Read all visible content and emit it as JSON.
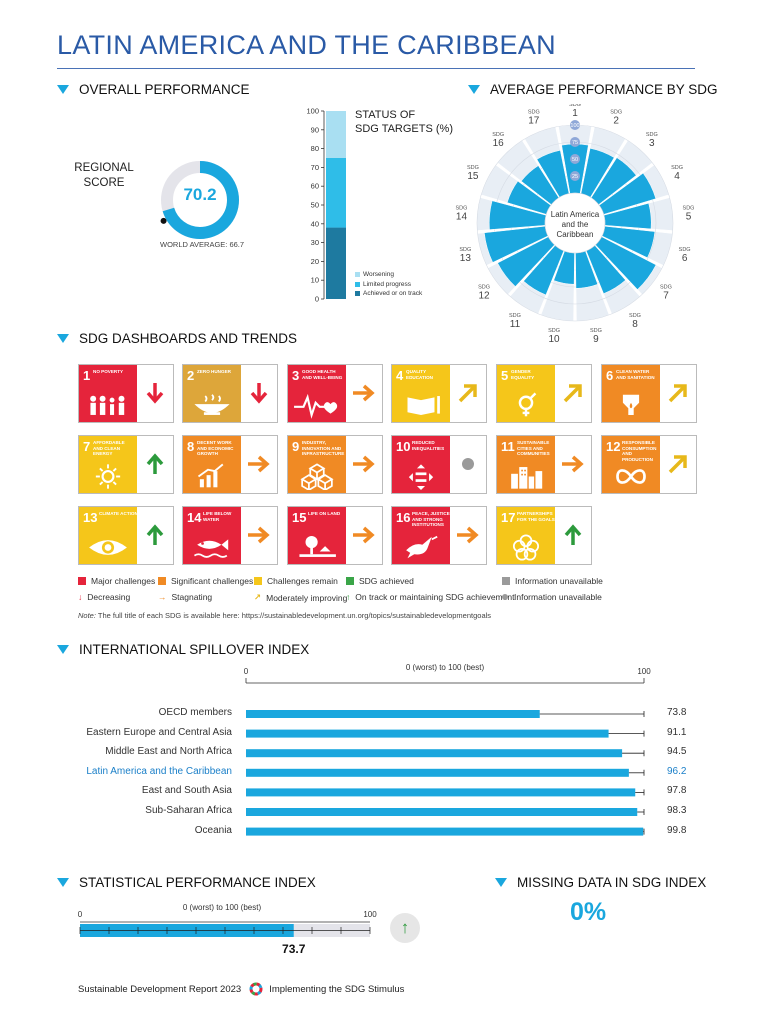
{
  "title": "LATIN AMERICA AND THE CARIBBEAN",
  "sections": {
    "overall": "OVERALL PERFORMANCE",
    "avg_sdg": "AVERAGE PERFORMANCE BY SDG",
    "dashboards": "SDG DASHBOARDS AND TRENDS",
    "spillover": "INTERNATIONAL SPILLOVER INDEX",
    "spi": "STATISTICAL PERFORMANCE INDEX",
    "missing": "MISSING DATA IN SDG INDEX"
  },
  "regional_score": {
    "label_line1": "REGIONAL",
    "label_line2": "SCORE",
    "value": "70.2",
    "score_fraction": 0.702,
    "world_average": "WORLD AVERAGE: 66.7",
    "world_fraction": 0.667,
    "ring_color": "#1aa7de",
    "track_color": "#e4e4ea"
  },
  "status_bar": {
    "title_line1": "STATUS OF",
    "title_line2": "SDG TARGETS (%)",
    "ticks": [
      "100",
      "90",
      "80",
      "70",
      "60",
      "50",
      "40",
      "30",
      "20",
      "10",
      "0"
    ],
    "segments": [
      {
        "name": "Achieved or on track",
        "value": 38,
        "color": "#1e7aa0"
      },
      {
        "name": "Limited progress",
        "value": 37,
        "color": "#2fbde8"
      },
      {
        "name": "Worsening",
        "value": 25,
        "color": "#a9dff2"
      }
    ],
    "legend": [
      "Worsening",
      "Limited progress",
      "Achieved or on track"
    ]
  },
  "radial": {
    "center_line1": "Latin America",
    "center_line2": "and the",
    "center_line3": "Caribbean",
    "ring_labels": [
      "25",
      "50",
      "75",
      "100"
    ],
    "sdg_word": "SDG",
    "goals": [
      "1",
      "2",
      "3",
      "4",
      "5",
      "6",
      "7",
      "8",
      "9",
      "10",
      "11",
      "12",
      "13",
      "14",
      "15",
      "16",
      "17"
    ],
    "values": [
      72,
      68,
      70,
      80,
      68,
      74,
      90,
      68,
      52,
      46,
      70,
      84,
      90,
      82,
      60,
      56,
      65
    ],
    "color": "#1aa7de"
  },
  "tiles": [
    {
      "num": "1",
      "label": "No poverty",
      "color": "#e5243b",
      "trend": "down",
      "icon": "people-icon"
    },
    {
      "num": "2",
      "label": "Zero hunger",
      "color": "#dda63a",
      "trend": "down",
      "icon": "bowl-icon"
    },
    {
      "num": "3",
      "label": "Good health and well-being",
      "color": "#e5243b",
      "trend": "right",
      "icon": "heartbeat-icon"
    },
    {
      "num": "4",
      "label": "Quality education",
      "color": "#f5c61a",
      "trend": "up-right",
      "icon": "book-icon"
    },
    {
      "num": "5",
      "label": "Gender equality",
      "color": "#f5c61a",
      "trend": "up-right",
      "icon": "gender-icon"
    },
    {
      "num": "6",
      "label": "Clean water and sanitation",
      "color": "#f08a24",
      "trend": "up-right",
      "icon": "water-drop-icon"
    },
    {
      "num": "7",
      "label": "Affordable and clean energy",
      "color": "#f5c61a",
      "trend": "up",
      "icon": "sun-icon"
    },
    {
      "num": "8",
      "label": "Decent work and economic growth",
      "color": "#f08a24",
      "trend": "right",
      "icon": "growth-chart-icon"
    },
    {
      "num": "9",
      "label": "Industry, innovation and infrastructure",
      "color": "#f08a24",
      "trend": "right",
      "icon": "cubes-icon"
    },
    {
      "num": "10",
      "label": "Reduced inequalities",
      "color": "#e5243b",
      "trend": "dot",
      "icon": "equality-icon"
    },
    {
      "num": "11",
      "label": "Sustainable cities and communities",
      "color": "#f08a24",
      "trend": "right",
      "icon": "city-icon"
    },
    {
      "num": "12",
      "label": "Responsible consumption and production",
      "color": "#f08a24",
      "trend": "up-right",
      "icon": "infinity-icon"
    },
    {
      "num": "13",
      "label": "Climate action",
      "color": "#f5c61a",
      "trend": "up",
      "icon": "eye-globe-icon"
    },
    {
      "num": "14",
      "label": "Life below water",
      "color": "#e5243b",
      "trend": "right",
      "icon": "fish-icon"
    },
    {
      "num": "15",
      "label": "Life on land",
      "color": "#e5243b",
      "trend": "right",
      "icon": "tree-icon"
    },
    {
      "num": "16",
      "label": "Peace, justice and strong institutions",
      "color": "#e5243b",
      "trend": "right",
      "icon": "dove-icon"
    },
    {
      "num": "17",
      "label": "Partnerships for the goals",
      "color": "#f5c61a",
      "trend": "up",
      "icon": "flower-icon"
    }
  ],
  "legend": {
    "major": "Major challenges",
    "significant": "Significant challenges",
    "remain": "Challenges remain",
    "achieved": "SDG achieved",
    "info_unavail": "Information unavailable",
    "decreasing": "Decreasing",
    "stagnating": "Stagnating",
    "moderately": "Moderately improving",
    "on_track": "On track or maintaining SDG achievement",
    "info_unavail2": "Information unavailable",
    "colors": {
      "red": "#e5243b",
      "orange": "#f08a24",
      "yellow": "#f5c61a",
      "green": "#3aa548",
      "grey": "#9a9a9a",
      "arrow_red": "#e5243b",
      "arrow_orange": "#f08a24",
      "arrow_yellow": "#e7b81a",
      "arrow_green": "#2c9a3c"
    }
  },
  "note_prefix": "Note:",
  "note": "The full title of each SDG is available here: https://sustainabledevelopment.un.org/topics/sustainabledevelopmentgoals",
  "spillover": {
    "axis_min": "0",
    "axis_max": "100",
    "axis_caption": "0 (worst) to 100 (best)",
    "rows": [
      {
        "name": "OECD members",
        "value": 73.8,
        "label": "73.8",
        "highlight": false
      },
      {
        "name": "Eastern Europe and Central Asia",
        "value": 91.1,
        "label": "91.1",
        "highlight": false
      },
      {
        "name": "Middle East and North Africa",
        "value": 94.5,
        "label": "94.5",
        "highlight": false
      },
      {
        "name": "Latin America and the Caribbean",
        "value": 96.2,
        "label": "96.2",
        "highlight": true
      },
      {
        "name": "East and South Asia",
        "value": 97.8,
        "label": "97.8",
        "highlight": false
      },
      {
        "name": "Sub-Saharan Africa",
        "value": 98.3,
        "label": "98.3",
        "highlight": false
      },
      {
        "name": "Oceania",
        "value": 99.8,
        "label": "99.8",
        "highlight": false
      }
    ]
  },
  "spi": {
    "axis_min": "0",
    "axis_max": "100",
    "axis_caption": "0 (worst) to 100 (best)",
    "value": 73.7,
    "label": "73.7"
  },
  "missing": {
    "value": "0%"
  },
  "footer": {
    "report": "Sustainable Development Report 2023",
    "subtitle": "Implementing the SDG Stimulus"
  }
}
